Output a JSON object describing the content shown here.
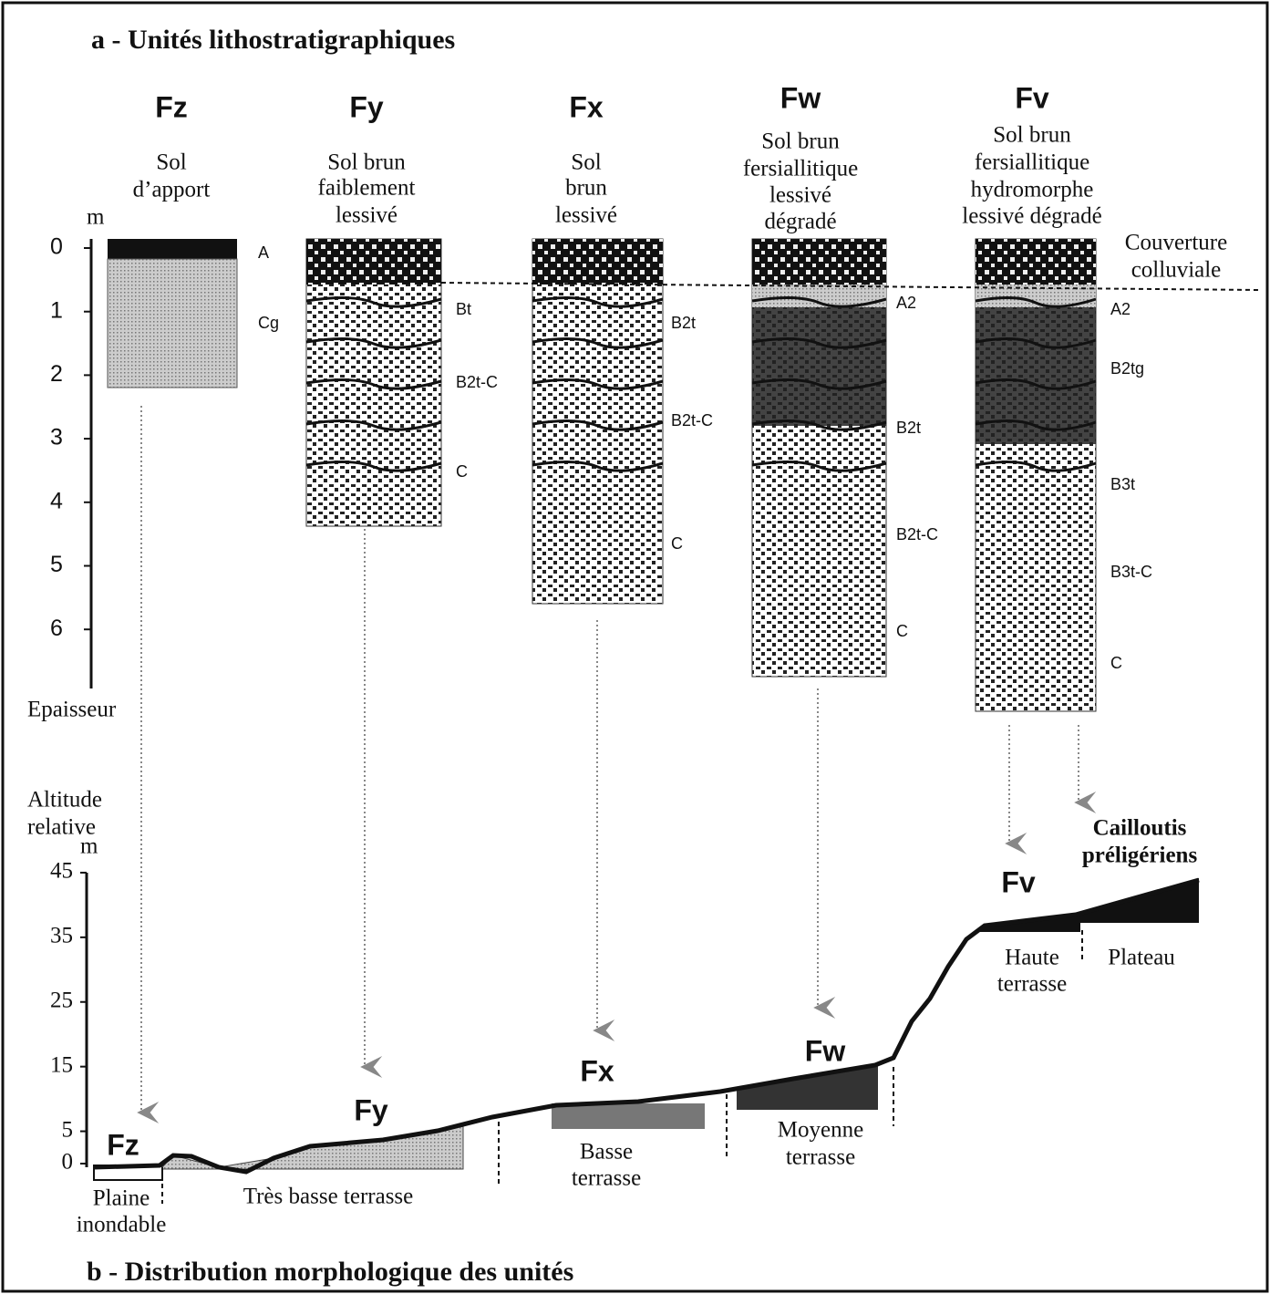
{
  "title_a": "a - Unités lithostratigraphiques",
  "title_b": "b - Distribution morphologique des unités",
  "thickness_axis": {
    "unit": "m",
    "label": "Epaisseur",
    "ticks": [
      0,
      1,
      2,
      3,
      4,
      5,
      6
    ]
  },
  "altitude_axis": {
    "label": [
      "Altitude",
      "relative"
    ],
    "unit": "m",
    "ticks": [
      0,
      5,
      15,
      25,
      35,
      45
    ]
  },
  "colluvial_cover": [
    "Couverture",
    "colluviale"
  ],
  "profiles": [
    {
      "code": "Fz",
      "soil": [
        "Sol",
        "d’apport"
      ],
      "horizons": [
        "A",
        "Cg"
      ]
    },
    {
      "code": "Fy",
      "soil": [
        "Sol brun",
        "faiblement",
        "lessivé"
      ],
      "horizons": [
        "Bt",
        "B2t-C",
        "C"
      ]
    },
    {
      "code": "Fx",
      "soil": [
        "Sol",
        "brun",
        "lessivé"
      ],
      "horizons": [
        "B2t",
        "B2t-C",
        "C"
      ]
    },
    {
      "code": "Fw",
      "soil": [
        "Sol brun",
        "fersiallitique",
        "lessivé",
        "dégradé"
      ],
      "horizons": [
        "A2",
        "B2t",
        "B2t-C",
        "C"
      ]
    },
    {
      "code": "Fv",
      "soil": [
        "Sol brun",
        "fersiallitique",
        "hydromorphe",
        "lessivé dégradé"
      ],
      "horizons": [
        "A2",
        "B2tg",
        "B3t",
        "B3t-C",
        "C"
      ]
    }
  ],
  "landforms": [
    {
      "code": "Fz",
      "name": [
        "Plaine",
        "inondable"
      ]
    },
    {
      "code": "Fy",
      "name": [
        "Très basse terrasse"
      ]
    },
    {
      "code": "Fx",
      "name": [
        "Basse",
        "terrasse"
      ]
    },
    {
      "code": "Fw",
      "name": [
        "Moyenne",
        "terrasse"
      ]
    },
    {
      "code": "Fv",
      "name": [
        "Haute",
        "terrasse"
      ]
    }
  ],
  "plateau": "Plateau",
  "gravels": [
    "Cailloutis",
    "préligériens"
  ]
}
